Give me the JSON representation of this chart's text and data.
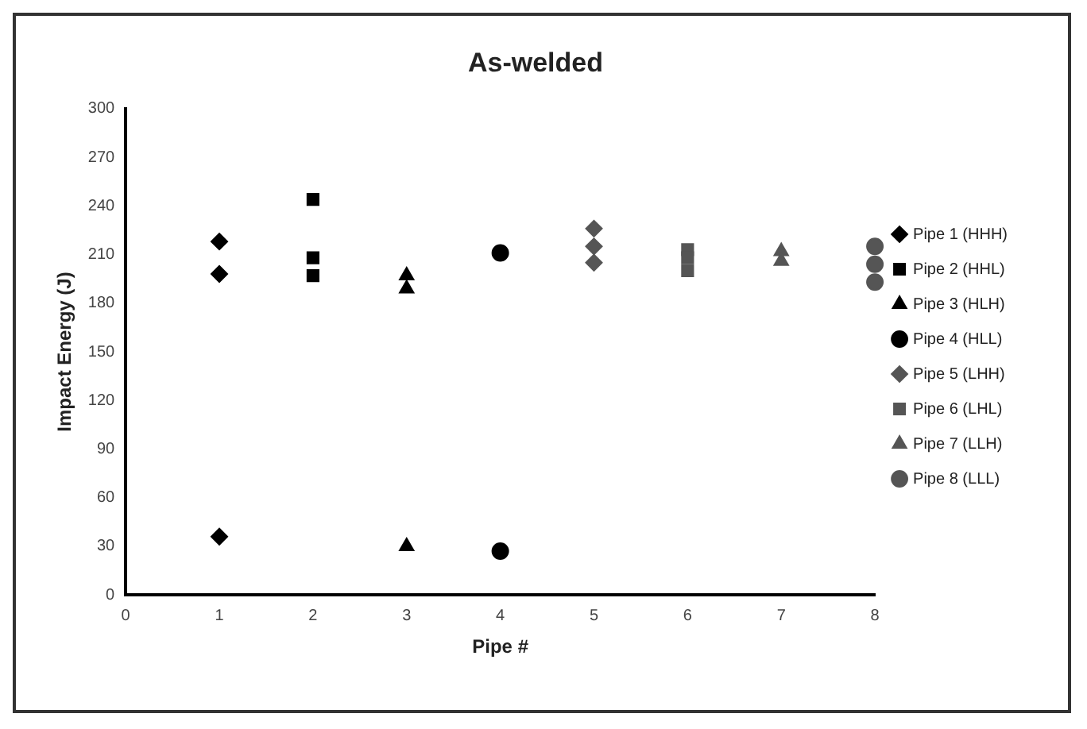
{
  "chart_data": {
    "type": "scatter",
    "title": "As-welded",
    "xlabel": "Pipe #",
    "ylabel": "Impact Energy (J)",
    "xlim": [
      0,
      8
    ],
    "xticks": [
      0,
      1,
      2,
      3,
      4,
      5,
      6,
      7,
      8
    ],
    "ylim": [
      0,
      300
    ],
    "yticks": [
      0,
      30,
      60,
      90,
      120,
      150,
      180,
      210,
      240,
      270,
      300
    ],
    "grid": false,
    "legend": "right",
    "series": [
      {
        "name": "Pipe 1 (HHH)",
        "color": "#000000",
        "marker": "diamond",
        "x": [
          1,
          1,
          1
        ],
        "values": [
          218,
          198,
          36
        ]
      },
      {
        "name": "Pipe 2 (HHL)",
        "color": "#000000",
        "marker": "square",
        "x": [
          2,
          2,
          2
        ],
        "values": [
          244,
          208,
          197
        ]
      },
      {
        "name": "Pipe 3 (HLH)",
        "color": "#000000",
        "marker": "triangle",
        "x": [
          3,
          3,
          3
        ],
        "values": [
          197,
          189,
          30
        ]
      },
      {
        "name": "Pipe 4 (HLL)",
        "color": "#000000",
        "marker": "circle",
        "x": [
          4,
          4
        ],
        "values": [
          211,
          27
        ]
      },
      {
        "name": "Pipe 5 (LHH)",
        "color": "#555555",
        "marker": "diamond",
        "x": [
          5,
          5,
          5
        ],
        "values": [
          226,
          215,
          205
        ]
      },
      {
        "name": "Pipe 6 (LHL)",
        "color": "#555555",
        "marker": "square",
        "x": [
          6,
          6,
          6
        ],
        "values": [
          213,
          208,
          200
        ]
      },
      {
        "name": "Pipe 7 (LLH)",
        "color": "#555555",
        "marker": "triangle",
        "x": [
          7,
          7
        ],
        "values": [
          212,
          206
        ]
      },
      {
        "name": "Pipe 8 (LLL)",
        "color": "#555555",
        "marker": "circle",
        "x": [
          8,
          8,
          8
        ],
        "values": [
          215,
          204,
          193
        ]
      }
    ]
  }
}
